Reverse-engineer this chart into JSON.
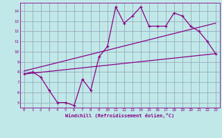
{
  "title": "",
  "xlabel": "Windchill (Refroidissement éolien,°C)",
  "ylabel": "",
  "xlim": [
    -0.5,
    23.5
  ],
  "ylim": [
    4.5,
    14.8
  ],
  "xticks": [
    0,
    1,
    2,
    3,
    4,
    5,
    6,
    7,
    8,
    9,
    10,
    11,
    12,
    13,
    14,
    15,
    16,
    17,
    18,
    19,
    20,
    21,
    22,
    23
  ],
  "yticks": [
    5,
    6,
    7,
    8,
    9,
    10,
    11,
    12,
    13,
    14
  ],
  "bg_color": "#c0e8e8",
  "line_color": "#880088",
  "grid_color": "#99aabb",
  "data_line": {
    "x": [
      0,
      1,
      2,
      3,
      4,
      5,
      6,
      7,
      8,
      9,
      10,
      11,
      12,
      13,
      14,
      15,
      16,
      17,
      18,
      19,
      20,
      21,
      22,
      23
    ],
    "y": [
      7.8,
      8.0,
      7.5,
      6.2,
      5.0,
      5.0,
      4.7,
      7.3,
      6.2,
      9.5,
      10.5,
      14.4,
      12.8,
      13.5,
      14.4,
      12.5,
      12.5,
      12.5,
      13.8,
      13.5,
      12.5,
      12.0,
      11.0,
      9.8
    ]
  },
  "trend_line1": {
    "x": [
      0,
      23
    ],
    "y": [
      7.8,
      9.8
    ]
  },
  "trend_line2": {
    "x": [
      0,
      23
    ],
    "y": [
      8.1,
      12.8
    ]
  }
}
